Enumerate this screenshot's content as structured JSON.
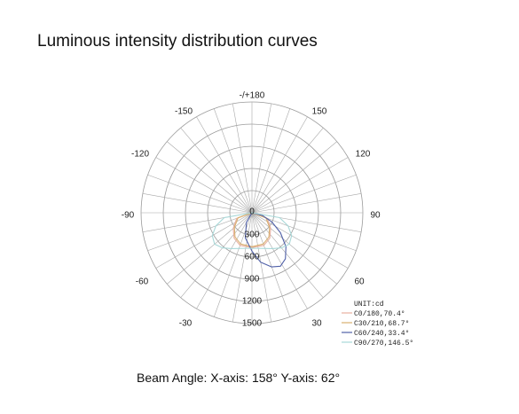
{
  "chart_data": {
    "type": "polar",
    "title": "Luminous intensity distribution curves",
    "footer": "Beam Angle:  X-axis: 158°  Y-axis: 62°",
    "unit_label": "UNIT:cd",
    "angle_labels": [
      "-/+180",
      "-150",
      "150",
      "-120",
      "120",
      "-90",
      "90",
      "-60",
      "60",
      "-30",
      "30"
    ],
    "radial_labels": [
      "0",
      "300",
      "600",
      "900",
      "1200",
      "1500"
    ],
    "radial_range": [
      0,
      1500
    ],
    "grid": true,
    "legend_position": "bottom-right",
    "series": [
      {
        "name": "C0/180,70.4°",
        "color": "#e8b0a0",
        "points": [
          [
            -70,
            220
          ],
          [
            -50,
            330
          ],
          [
            -35,
            420
          ],
          [
            -20,
            470
          ],
          [
            0,
            470
          ],
          [
            20,
            470
          ],
          [
            35,
            420
          ],
          [
            50,
            330
          ],
          [
            70,
            220
          ]
        ]
      },
      {
        "name": "C30/210,68.7°",
        "color": "#d8b070",
        "points": [
          [
            -70,
            200
          ],
          [
            -50,
            310
          ],
          [
            -35,
            400
          ],
          [
            -20,
            450
          ],
          [
            0,
            460
          ],
          [
            20,
            450
          ],
          [
            35,
            400
          ],
          [
            50,
            310
          ],
          [
            70,
            200
          ]
        ]
      },
      {
        "name": "C60/240,33.4°",
        "color": "#5060a8",
        "points": [
          [
            -30,
            150
          ],
          [
            -15,
            350
          ],
          [
            0,
            520
          ],
          [
            10,
            680
          ],
          [
            20,
            780
          ],
          [
            28,
            820
          ],
          [
            36,
            770
          ],
          [
            45,
            650
          ],
          [
            55,
            470
          ],
          [
            65,
            300
          ],
          [
            75,
            150
          ]
        ]
      },
      {
        "name": "C90/270,146.5°",
        "color": "#a8d8d8",
        "points": [
          [
            -80,
            380
          ],
          [
            -70,
            520
          ],
          [
            -60,
            620
          ],
          [
            -50,
            660
          ],
          [
            -40,
            620
          ],
          [
            -30,
            560
          ],
          [
            0,
            480
          ],
          [
            30,
            560
          ],
          [
            40,
            620
          ],
          [
            50,
            660
          ],
          [
            60,
            620
          ],
          [
            70,
            520
          ],
          [
            80,
            380
          ]
        ]
      }
    ]
  }
}
